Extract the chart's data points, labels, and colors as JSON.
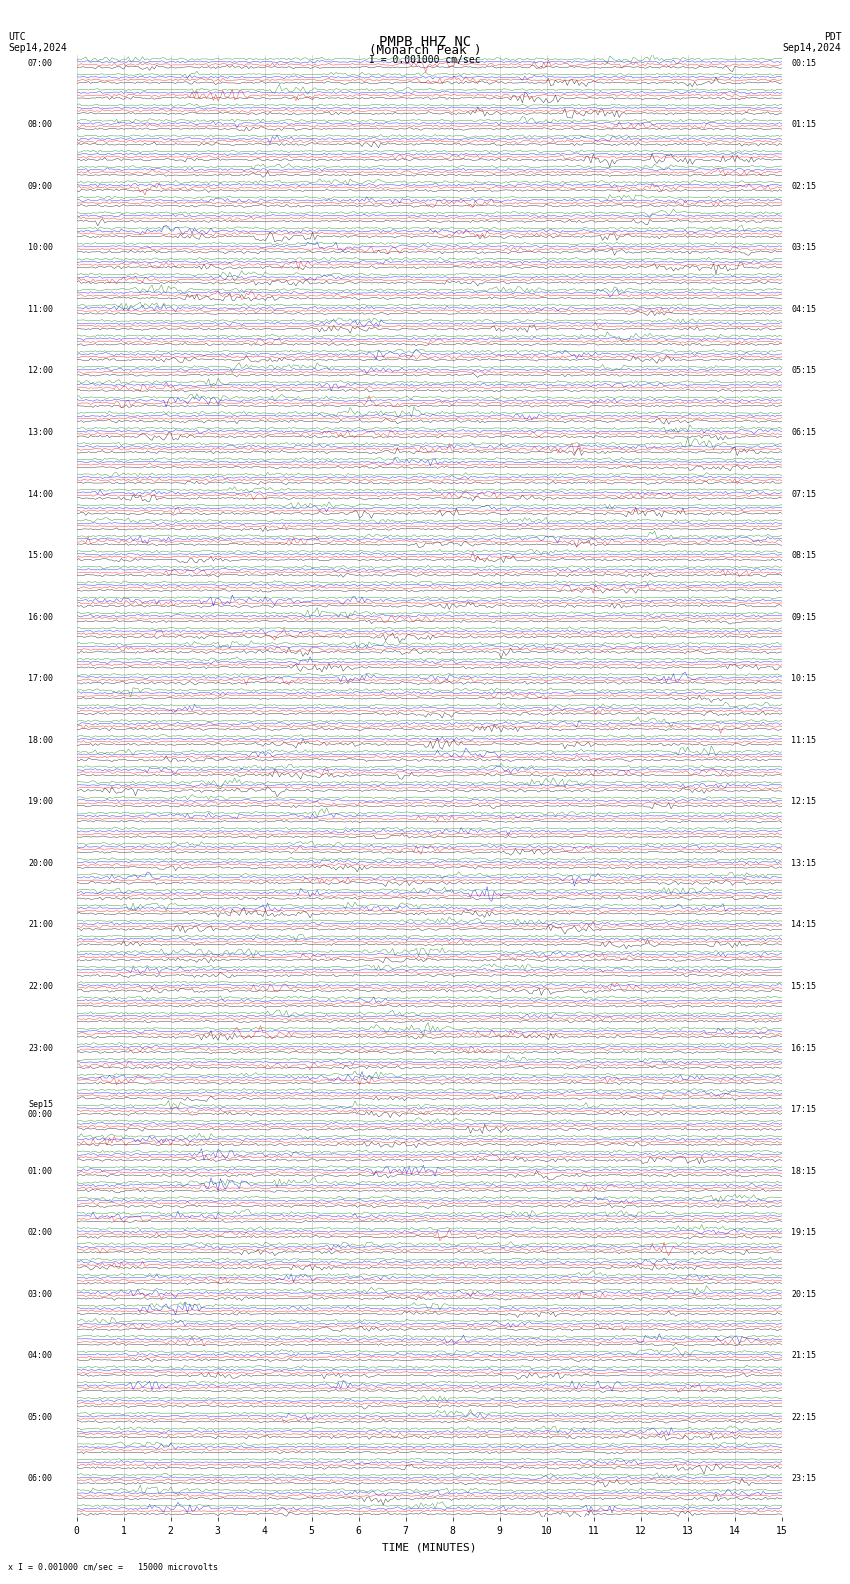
{
  "title_line1": "PMPB HHZ NC",
  "title_line2": "(Monarch Peak )",
  "scale_label": "I = 0.001000 cm/sec",
  "footer_label": "x I = 0.001000 cm/sec =   15000 microvolts",
  "utc_label": "UTC\nSep14,2024",
  "pdt_label": "PDT\nSep14,2024",
  "xlabel": "TIME (MINUTES)",
  "bg_color": "#ffffff",
  "trace_colors": [
    "#000000",
    "#ff0000",
    "#0000ff",
    "#008000"
  ],
  "grid_color": "#aaaaaa",
  "left_times": [
    "07:00",
    "",
    "",
    "",
    "08:00",
    "",
    "",
    "",
    "09:00",
    "",
    "",
    "",
    "10:00",
    "",
    "",
    "",
    "11:00",
    "",
    "",
    "",
    "12:00",
    "",
    "",
    "",
    "13:00",
    "",
    "",
    "",
    "14:00",
    "",
    "",
    "",
    "15:00",
    "",
    "",
    "",
    "16:00",
    "",
    "",
    "",
    "17:00",
    "",
    "",
    "",
    "18:00",
    "",
    "",
    "",
    "19:00",
    "",
    "",
    "",
    "20:00",
    "",
    "",
    "",
    "21:00",
    "",
    "",
    "",
    "22:00",
    "",
    "",
    "",
    "23:00",
    "",
    "",
    "",
    "Sep15\n00:00",
    "",
    "",
    "",
    "01:00",
    "",
    "",
    "",
    "02:00",
    "",
    "",
    "",
    "03:00",
    "",
    "",
    "",
    "04:00",
    "",
    "",
    "",
    "05:00",
    "",
    "",
    "",
    "06:00",
    "",
    ""
  ],
  "right_times": [
    "00:15",
    "",
    "",
    "",
    "01:15",
    "",
    "",
    "",
    "02:15",
    "",
    "",
    "",
    "03:15",
    "",
    "",
    "",
    "04:15",
    "",
    "",
    "",
    "05:15",
    "",
    "",
    "",
    "06:15",
    "",
    "",
    "",
    "07:15",
    "",
    "",
    "",
    "08:15",
    "",
    "",
    "",
    "09:15",
    "",
    "",
    "",
    "10:15",
    "",
    "",
    "",
    "11:15",
    "",
    "",
    "",
    "12:15",
    "",
    "",
    "",
    "13:15",
    "",
    "",
    "",
    "14:15",
    "",
    "",
    "",
    "15:15",
    "",
    "",
    "",
    "16:15",
    "",
    "",
    "",
    "17:15",
    "",
    "",
    "",
    "18:15",
    "",
    "",
    "",
    "19:15",
    "",
    "",
    "",
    "20:15",
    "",
    "",
    "",
    "21:15",
    "",
    "",
    "",
    "22:15",
    "",
    "",
    "",
    "23:15",
    "",
    ""
  ],
  "n_rows": 95,
  "traces_per_row": 4,
  "xmin": 0,
  "xmax": 15,
  "xticks": [
    0,
    1,
    2,
    3,
    4,
    5,
    6,
    7,
    8,
    9,
    10,
    11,
    12,
    13,
    14,
    15
  ],
  "noise_amplitude": 0.25,
  "seed": 42
}
